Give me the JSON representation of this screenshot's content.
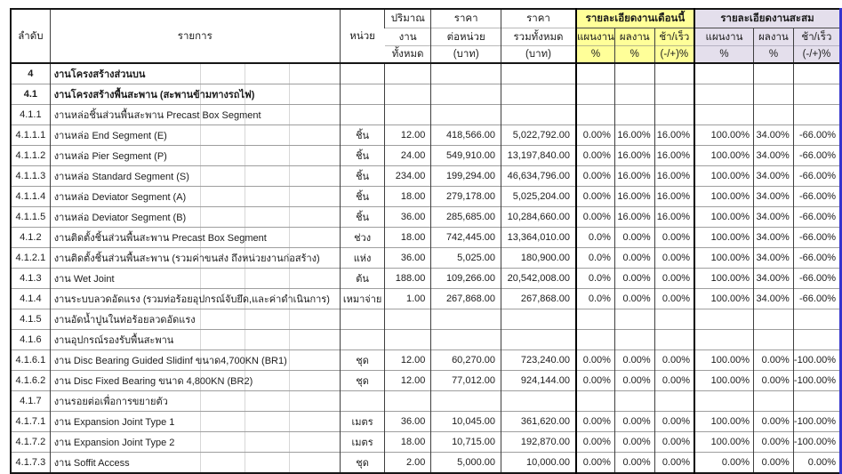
{
  "colors": {
    "group_month_bg": "#FFFF99",
    "group_cum_bg": "#E4DFEC",
    "page_break_line": "#3535CD",
    "grid_dark": "#3F3F3F",
    "grid_light": "#9E9E9E"
  },
  "table": {
    "header": {
      "col_no": "ลำดับ",
      "col_desc": "รายการ",
      "col_unit": "หน่วย",
      "col_qty": [
        "ปริมาณ",
        "งาน",
        "ทั้งหมด"
      ],
      "col_unit_price": [
        "ราคา",
        "ต่อหน่วย",
        "(บาท)"
      ],
      "col_total_price": [
        "ราคา",
        "รวมทั้งหมด",
        "(บาท)"
      ],
      "group_month": {
        "title": "รายละเอียดงานเดือนนี้",
        "cols": [
          {
            "label": "แผนงาน",
            "unit": "%"
          },
          {
            "label": "ผลงาน",
            "unit": "%"
          },
          {
            "label": "ช้า/เร็ว",
            "unit": "(-/+)%"
          }
        ]
      },
      "group_cum": {
        "title": "รายละเอียดงานสะสม",
        "cols": [
          {
            "label": "แผนงาน",
            "unit": "%"
          },
          {
            "label": "ผลงาน",
            "unit": "%"
          },
          {
            "label": "ช้า/เร็ว",
            "unit": "(-/+)%"
          }
        ]
      }
    },
    "rows": [
      {
        "no": "4",
        "desc": "งานโครงสร้างส่วนบน",
        "bold": true,
        "unit": "",
        "qty": "",
        "unit_price": "",
        "total_price": "",
        "month": [
          "",
          "",
          ""
        ],
        "cum": [
          "",
          "",
          ""
        ]
      },
      {
        "no": "4.1",
        "desc": "งานโครงสร้างพื้นสะพาน (สะพานข้ามทางรถไฟ)",
        "bold": true,
        "unit": "",
        "qty": "",
        "unit_price": "",
        "total_price": "",
        "month": [
          "",
          "",
          ""
        ],
        "cum": [
          "",
          "",
          ""
        ]
      },
      {
        "no": "4.1.1",
        "desc": "งานหล่อชิ้นส่วนพื้นสะพาน Precast Box Segment",
        "bold": false,
        "unit": "",
        "qty": "",
        "unit_price": "",
        "total_price": "",
        "month": [
          "",
          "",
          ""
        ],
        "cum": [
          "",
          "",
          ""
        ]
      },
      {
        "no": "4.1.1.1",
        "desc": "งานหล่อ End Segment (E)",
        "bold": false,
        "unit": "ชิ้น",
        "qty": "12.00",
        "unit_price": "418,566.00",
        "total_price": "5,022,792.00",
        "month": [
          "0.00%",
          "16.00%",
          "16.00%"
        ],
        "cum": [
          "100.00%",
          "34.00%",
          "-66.00%"
        ]
      },
      {
        "no": "4.1.1.2",
        "desc": "งานหล่อ Pier Segment (P)",
        "bold": false,
        "unit": "ชิ้น",
        "qty": "24.00",
        "unit_price": "549,910.00",
        "total_price": "13,197,840.00",
        "month": [
          "0.00%",
          "16.00%",
          "16.00%"
        ],
        "cum": [
          "100.00%",
          "34.00%",
          "-66.00%"
        ]
      },
      {
        "no": "4.1.1.3",
        "desc": "งานหล่อ Standard Segment (S)",
        "bold": false,
        "unit": "ชิ้น",
        "qty": "234.00",
        "unit_price": "199,294.00",
        "total_price": "46,634,796.00",
        "month": [
          "0.00%",
          "16.00%",
          "16.00%"
        ],
        "cum": [
          "100.00%",
          "34.00%",
          "-66.00%"
        ]
      },
      {
        "no": "4.1.1.4",
        "desc": "งานหล่อ Deviator Segment (A)",
        "bold": false,
        "unit": "ชิ้น",
        "qty": "18.00",
        "unit_price": "279,178.00",
        "total_price": "5,025,204.00",
        "month": [
          "0.00%",
          "16.00%",
          "16.00%"
        ],
        "cum": [
          "100.00%",
          "34.00%",
          "-66.00%"
        ]
      },
      {
        "no": "4.1.1.5",
        "desc": "งานหล่อ Deviator Segment (B)",
        "bold": false,
        "unit": "ชิ้น",
        "qty": "36.00",
        "unit_price": "285,685.00",
        "total_price": "10,284,660.00",
        "month": [
          "0.00%",
          "16.00%",
          "16.00%"
        ],
        "cum": [
          "100.00%",
          "34.00%",
          "-66.00%"
        ]
      },
      {
        "no": "4.1.2",
        "desc": "งานติดตั้งชิ้นส่วนพื้นสะพาน Precast Box Segment",
        "bold": false,
        "unit": "ช่วง",
        "qty": "18.00",
        "unit_price": "742,445.00",
        "total_price": "13,364,010.00",
        "month": [
          "0.0%",
          "0.00%",
          "0.00%"
        ],
        "cum": [
          "100.00%",
          "34.00%",
          "-66.00%"
        ]
      },
      {
        "no": "4.1.2.1",
        "desc": "งานติดตั้งชิ้นส่วนพื้นสะพาน (รวมค่าขนส่ง ถึงหน่วยงานก่อสร้าง)",
        "bold": false,
        "unit": "แห่ง",
        "qty": "36.00",
        "unit_price": "5,025.00",
        "total_price": "180,900.00",
        "month": [
          "0.0%",
          "0.00%",
          "0.00%"
        ],
        "cum": [
          "100.00%",
          "34.00%",
          "-66.00%"
        ]
      },
      {
        "no": "4.1.3",
        "desc": "งาน Wet Joint",
        "bold": false,
        "unit": "ต้น",
        "qty": "188.00",
        "unit_price": "109,266.00",
        "total_price": "20,542,008.00",
        "month": [
          "0.0%",
          "0.00%",
          "0.00%"
        ],
        "cum": [
          "100.00%",
          "34.00%",
          "-66.00%"
        ]
      },
      {
        "no": "4.1.4",
        "desc": "งานระบบลวดอัดแรง (รวมท่อร้อยอุปกรณ์จับยึด,และค่าดำเนินการ)",
        "bold": false,
        "unit": "เหมาจ่าย",
        "qty": "1.00",
        "unit_price": "267,868.00",
        "total_price": "267,868.00",
        "month": [
          "0.0%",
          "0.00%",
          "0.00%"
        ],
        "cum": [
          "100.00%",
          "34.00%",
          "-66.00%"
        ]
      },
      {
        "no": "4.1.5",
        "desc": "งานอัดน้ำปูนในท่อร้อยลวดอัดแรง",
        "bold": false,
        "unit": "",
        "qty": "",
        "unit_price": "",
        "total_price": "",
        "month": [
          "",
          "",
          ""
        ],
        "cum": [
          "",
          "",
          ""
        ]
      },
      {
        "no": "4.1.6",
        "desc": "งานอุปกรณ์รองรับพื้นสะพาน",
        "bold": false,
        "unit": "",
        "qty": "",
        "unit_price": "",
        "total_price": "",
        "month": [
          "",
          "",
          ""
        ],
        "cum": [
          "",
          "",
          ""
        ]
      },
      {
        "no": "4.1.6.1",
        "desc": "งาน Disc Bearing Guided Slidinf ขนาด4,700KN (BR1)",
        "bold": false,
        "unit": "ชุด",
        "qty": "12.00",
        "unit_price": "60,270.00",
        "total_price": "723,240.00",
        "month": [
          "0.00%",
          "0.00%",
          "0.00%"
        ],
        "cum": [
          "100.00%",
          "0.00%",
          "-100.00%"
        ]
      },
      {
        "no": "4.1.6.2",
        "desc": "งาน Disc Fixed Bearing ขนาด 4,800KN (BR2)",
        "bold": false,
        "unit": "ชุด",
        "qty": "12.00",
        "unit_price": "77,012.00",
        "total_price": "924,144.00",
        "month": [
          "0.00%",
          "0.00%",
          "0.00%"
        ],
        "cum": [
          "100.00%",
          "0.00%",
          "-100.00%"
        ]
      },
      {
        "no": "4.1.7",
        "desc": "งานรอยต่อเพื่อการขยายตัว",
        "bold": false,
        "unit": "",
        "qty": "",
        "unit_price": "",
        "total_price": "",
        "month": [
          "",
          "",
          ""
        ],
        "cum": [
          "",
          "",
          ""
        ]
      },
      {
        "no": "4.1.7.1",
        "desc": "งาน Expansion Joint Type 1",
        "bold": false,
        "unit": "เมตร",
        "qty": "36.00",
        "unit_price": "10,045.00",
        "total_price": "361,620.00",
        "month": [
          "0.00%",
          "0.00%",
          "0.00%"
        ],
        "cum": [
          "100.00%",
          "0.00%",
          "-100.00%"
        ]
      },
      {
        "no": "4.1.7.2",
        "desc": "งาน Expansion Joint Type 2",
        "bold": false,
        "unit": "เมตร",
        "qty": "18.00",
        "unit_price": "10,715.00",
        "total_price": "192,870.00",
        "month": [
          "0.00%",
          "0.00%",
          "0.00%"
        ],
        "cum": [
          "100.00%",
          "0.00%",
          "-100.00%"
        ]
      },
      {
        "no": "4.1.7.3",
        "desc": "งาน Soffit Access",
        "bold": false,
        "unit": "ชุด",
        "qty": "2.00",
        "unit_price": "5,000.00",
        "total_price": "10,000.00",
        "month": [
          "0.00%",
          "0.00%",
          "0.00%"
        ],
        "cum": [
          "0.00%",
          "0.00%",
          "0.00%"
        ]
      }
    ]
  }
}
